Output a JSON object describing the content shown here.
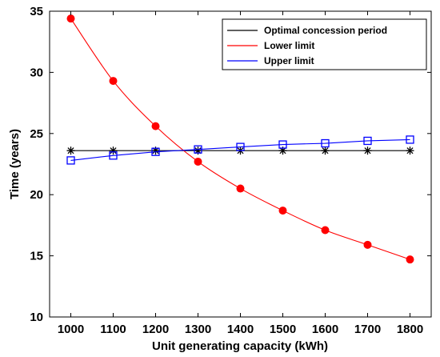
{
  "chart_data": {
    "type": "line",
    "title": "",
    "xlabel": "Unit generating capacity (kWh)",
    "ylabel": "Time (years)",
    "x": [
      1000,
      1100,
      1200,
      1300,
      1400,
      1500,
      1600,
      1700,
      1800
    ],
    "xlim": [
      950,
      1850
    ],
    "ylim": [
      10,
      35
    ],
    "xticks": [
      "1000",
      "1100",
      "1200",
      "1300",
      "1400",
      "1500",
      "1600",
      "1700",
      "1800"
    ],
    "yticks": [
      "10",
      "15",
      "20",
      "25",
      "30",
      "35"
    ],
    "grid": false,
    "legend_position": "top-right",
    "series": [
      {
        "name": "Optimal concession period",
        "color": "#000000",
        "marker": "asterisk",
        "values": [
          23.6,
          23.6,
          23.6,
          23.6,
          23.6,
          23.6,
          23.6,
          23.6,
          23.6
        ]
      },
      {
        "name": "Lower limit",
        "color": "#ff0000",
        "marker": "filled-circle",
        "values": [
          34.4,
          29.3,
          25.6,
          22.7,
          20.5,
          18.7,
          17.1,
          15.9,
          14.7
        ]
      },
      {
        "name": "Upper limit",
        "color": "#0000ff",
        "marker": "open-square",
        "values": [
          22.8,
          23.2,
          23.5,
          23.7,
          23.9,
          24.1,
          24.2,
          24.4,
          24.5
        ]
      }
    ]
  }
}
